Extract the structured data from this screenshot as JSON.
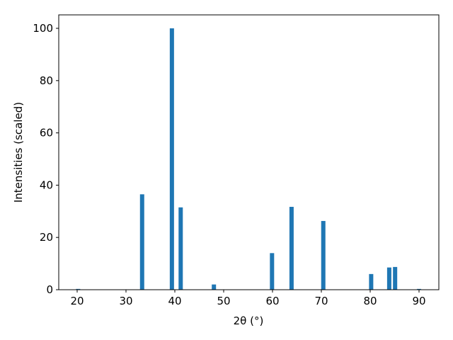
{
  "chart_data": {
    "type": "bar",
    "xlabel": "2θ (°)",
    "ylabel": "Intensities (scaled)",
    "x": [
      20.2,
      33.3,
      39.4,
      41.2,
      48.0,
      59.9,
      63.9,
      70.4,
      80.2,
      83.9,
      85.1,
      90.0
    ],
    "values": [
      0.3,
      36.5,
      100,
      31.5,
      2,
      14,
      31.7,
      26.3,
      6,
      8.5,
      8.7,
      0.3
    ],
    "color": "#1f77b4",
    "xlim": [
      16.23,
      94.06
    ],
    "xticks": [
      20,
      30,
      40,
      50,
      60,
      70,
      80,
      90
    ],
    "ylim": [
      0,
      105.15
    ],
    "yticks": [
      0,
      20,
      40,
      60,
      80,
      100
    ],
    "grid": false
  }
}
